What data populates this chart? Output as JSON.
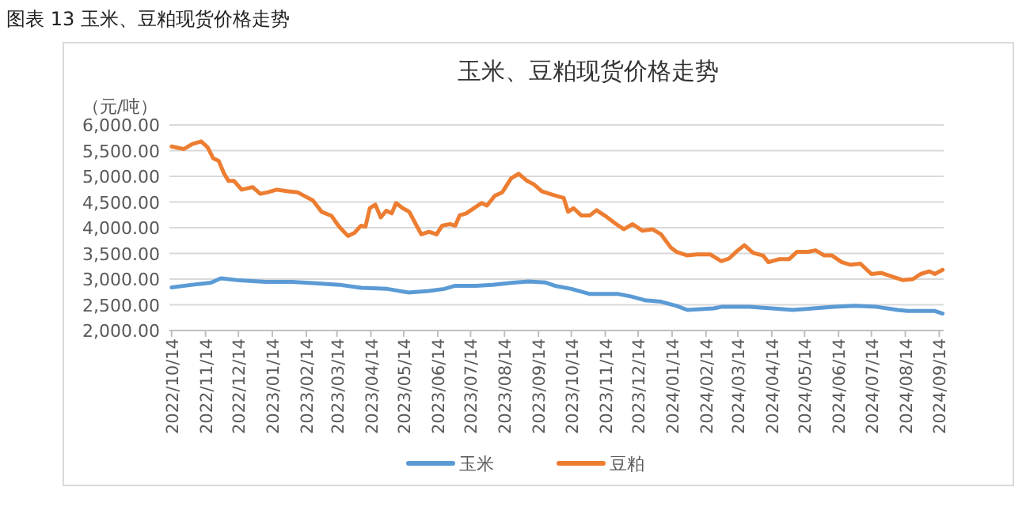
{
  "chart_data": {
    "type": "line",
    "title": "玉米、豆粕现货价格走势",
    "ylabel": "（元/吨）",
    "annotations": [
      "图表 13 玉米、豆粕现货价格走势"
    ],
    "xlim": [
      "2022-10-12",
      "2024-09-18"
    ],
    "xticks": [
      {
        "value": "2022-10-14",
        "label": "2022/10/14"
      },
      {
        "value": "2022-11-14",
        "label": "2022/11/14"
      },
      {
        "value": "2022-12-14",
        "label": "2022/12/14"
      },
      {
        "value": "2023-01-14",
        "label": "2023/01/14"
      },
      {
        "value": "2023-02-14",
        "label": "2023/02/14"
      },
      {
        "value": "2023-03-14",
        "label": "2023/03/14"
      },
      {
        "value": "2023-04-14",
        "label": "2023/04/14"
      },
      {
        "value": "2023-05-14",
        "label": "2023/05/14"
      },
      {
        "value": "2023-06-14",
        "label": "2023/06/14"
      },
      {
        "value": "2023-07-14",
        "label": "2023/07/14"
      },
      {
        "value": "2023-08-14",
        "label": "2023/08/14"
      },
      {
        "value": "2023-09-14",
        "label": "2023/09/14"
      },
      {
        "value": "2023-10-14",
        "label": "2023/10/14"
      },
      {
        "value": "2023-11-14",
        "label": "2023/11/14"
      },
      {
        "value": "2023-12-14",
        "label": "2023/12/14"
      },
      {
        "value": "2024-01-14",
        "label": "2024/01/14"
      },
      {
        "value": "2024-02-14",
        "label": "2024/02/14"
      },
      {
        "value": "2024-03-14",
        "label": "2024/03/14"
      },
      {
        "value": "2024-04-14",
        "label": "2024/04/14"
      },
      {
        "value": "2024-05-14",
        "label": "2024/05/14"
      },
      {
        "value": "2024-06-14",
        "label": "2024/06/14"
      },
      {
        "value": "2024-07-14",
        "label": "2024/07/14"
      },
      {
        "value": "2024-08-14",
        "label": "2024/08/14"
      },
      {
        "value": "2024-09-14",
        "label": "2024/09/14"
      }
    ],
    "ylim": [
      2000,
      6000
    ],
    "yticks": [
      {
        "value": 2000,
        "label": "2,000.00"
      },
      {
        "value": 2500,
        "label": "2,500.00"
      },
      {
        "value": 3000,
        "label": "3,000.00"
      },
      {
        "value": 3500,
        "label": "3,500.00"
      },
      {
        "value": 4000,
        "label": "4,000.00"
      },
      {
        "value": 4500,
        "label": "4,500.00"
      },
      {
        "value": 5000,
        "label": "5,000.00"
      },
      {
        "value": 5500,
        "label": "5,500.00"
      },
      {
        "value": 6000,
        "label": "6,000.00"
      }
    ],
    "grid": "y",
    "legend": "bottom",
    "series": [
      {
        "name": "玉米",
        "color": "#5b9bd5",
        "x": [
          "2022-10-14",
          "2022-11-02",
          "2022-11-19",
          "2022-11-28",
          "2022-12-15",
          "2023-01-08",
          "2023-02-01",
          "2023-02-25",
          "2023-03-16",
          "2023-04-05",
          "2023-04-29",
          "2023-05-18",
          "2023-06-06",
          "2023-06-20",
          "2023-06-30",
          "2023-07-19",
          "2023-08-03",
          "2023-08-22",
          "2023-09-05",
          "2023-09-20",
          "2023-09-29",
          "2023-10-14",
          "2023-10-31",
          "2023-11-26",
          "2023-12-08",
          "2023-12-20",
          "2024-01-04",
          "2024-01-18",
          "2024-01-28",
          "2024-02-21",
          "2024-02-28",
          "2024-03-25",
          "2024-04-14",
          "2024-05-03",
          "2024-05-22",
          "2024-06-10",
          "2024-06-29",
          "2024-07-19",
          "2024-08-07",
          "2024-08-16",
          "2024-09-10",
          "2024-09-17"
        ],
        "values": [
          2840,
          2890,
          2930,
          3015,
          2975,
          2945,
          2945,
          2915,
          2890,
          2830,
          2810,
          2740,
          2770,
          2810,
          2870,
          2870,
          2890,
          2930,
          2955,
          2935,
          2870,
          2810,
          2710,
          2710,
          2660,
          2590,
          2560,
          2480,
          2400,
          2430,
          2460,
          2460,
          2430,
          2400,
          2430,
          2460,
          2480,
          2460,
          2400,
          2380,
          2380,
          2330
        ]
      },
      {
        "name": "豆粕",
        "color": "#ed7d31",
        "x": [
          "2022-10-14",
          "2022-10-25",
          "2022-11-02",
          "2022-11-10",
          "2022-11-16",
          "2022-11-21",
          "2022-11-26",
          "2022-12-01",
          "2022-12-05",
          "2022-12-10",
          "2022-12-17",
          "2022-12-27",
          "2023-01-03",
          "2023-01-10",
          "2023-01-18",
          "2023-01-27",
          "2023-02-06",
          "2023-02-13",
          "2023-02-20",
          "2023-02-28",
          "2023-03-09",
          "2023-03-16",
          "2023-03-24",
          "2023-03-30",
          "2023-04-05",
          "2023-04-09",
          "2023-04-13",
          "2023-04-18",
          "2023-04-23",
          "2023-04-28",
          "2023-05-03",
          "2023-05-07",
          "2023-05-13",
          "2023-05-19",
          "2023-05-25",
          "2023-05-30",
          "2023-06-06",
          "2023-06-13",
          "2023-06-18",
          "2023-06-25",
          "2023-06-30",
          "2023-07-04",
          "2023-07-10",
          "2023-07-17",
          "2023-07-24",
          "2023-07-29",
          "2023-08-05",
          "2023-08-12",
          "2023-08-20",
          "2023-08-27",
          "2023-09-03",
          "2023-09-10",
          "2023-09-17",
          "2023-09-27",
          "2023-10-07",
          "2023-10-11",
          "2023-10-16",
          "2023-10-23",
          "2023-10-31",
          "2023-11-06",
          "2023-11-14",
          "2023-11-24",
          "2023-12-01",
          "2023-12-09",
          "2023-12-18",
          "2023-12-27",
          "2024-01-04",
          "2024-01-13",
          "2024-01-18",
          "2024-01-28",
          "2024-02-06",
          "2024-02-18",
          "2024-02-28",
          "2024-03-06",
          "2024-03-13",
          "2024-03-20",
          "2024-03-28",
          "2024-04-06",
          "2024-04-11",
          "2024-04-21",
          "2024-04-30",
          "2024-05-07",
          "2024-05-17",
          "2024-05-24",
          "2024-06-01",
          "2024-06-08",
          "2024-06-17",
          "2024-06-25",
          "2024-07-04",
          "2024-07-14",
          "2024-07-23",
          "2024-08-02",
          "2024-08-12",
          "2024-08-21",
          "2024-08-28",
          "2024-09-05",
          "2024-09-10",
          "2024-09-17"
        ],
        "values": [
          5580,
          5530,
          5630,
          5680,
          5560,
          5350,
          5300,
          5050,
          4910,
          4910,
          4740,
          4790,
          4660,
          4690,
          4740,
          4710,
          4690,
          4610,
          4530,
          4310,
          4230,
          4020,
          3840,
          3900,
          4040,
          4020,
          4380,
          4450,
          4200,
          4330,
          4280,
          4480,
          4380,
          4310,
          4070,
          3870,
          3920,
          3870,
          4040,
          4070,
          4040,
          4240,
          4280,
          4380,
          4480,
          4430,
          4620,
          4690,
          4960,
          5050,
          4920,
          4840,
          4710,
          4640,
          4580,
          4310,
          4380,
          4240,
          4240,
          4340,
          4230,
          4070,
          3970,
          4070,
          3940,
          3970,
          3870,
          3610,
          3530,
          3460,
          3480,
          3480,
          3350,
          3400,
          3540,
          3660,
          3510,
          3460,
          3330,
          3390,
          3390,
          3530,
          3530,
          3560,
          3460,
          3460,
          3330,
          3280,
          3300,
          3100,
          3120,
          3050,
          2980,
          3000,
          3100,
          3150,
          3100,
          3180
        ]
      }
    ]
  }
}
